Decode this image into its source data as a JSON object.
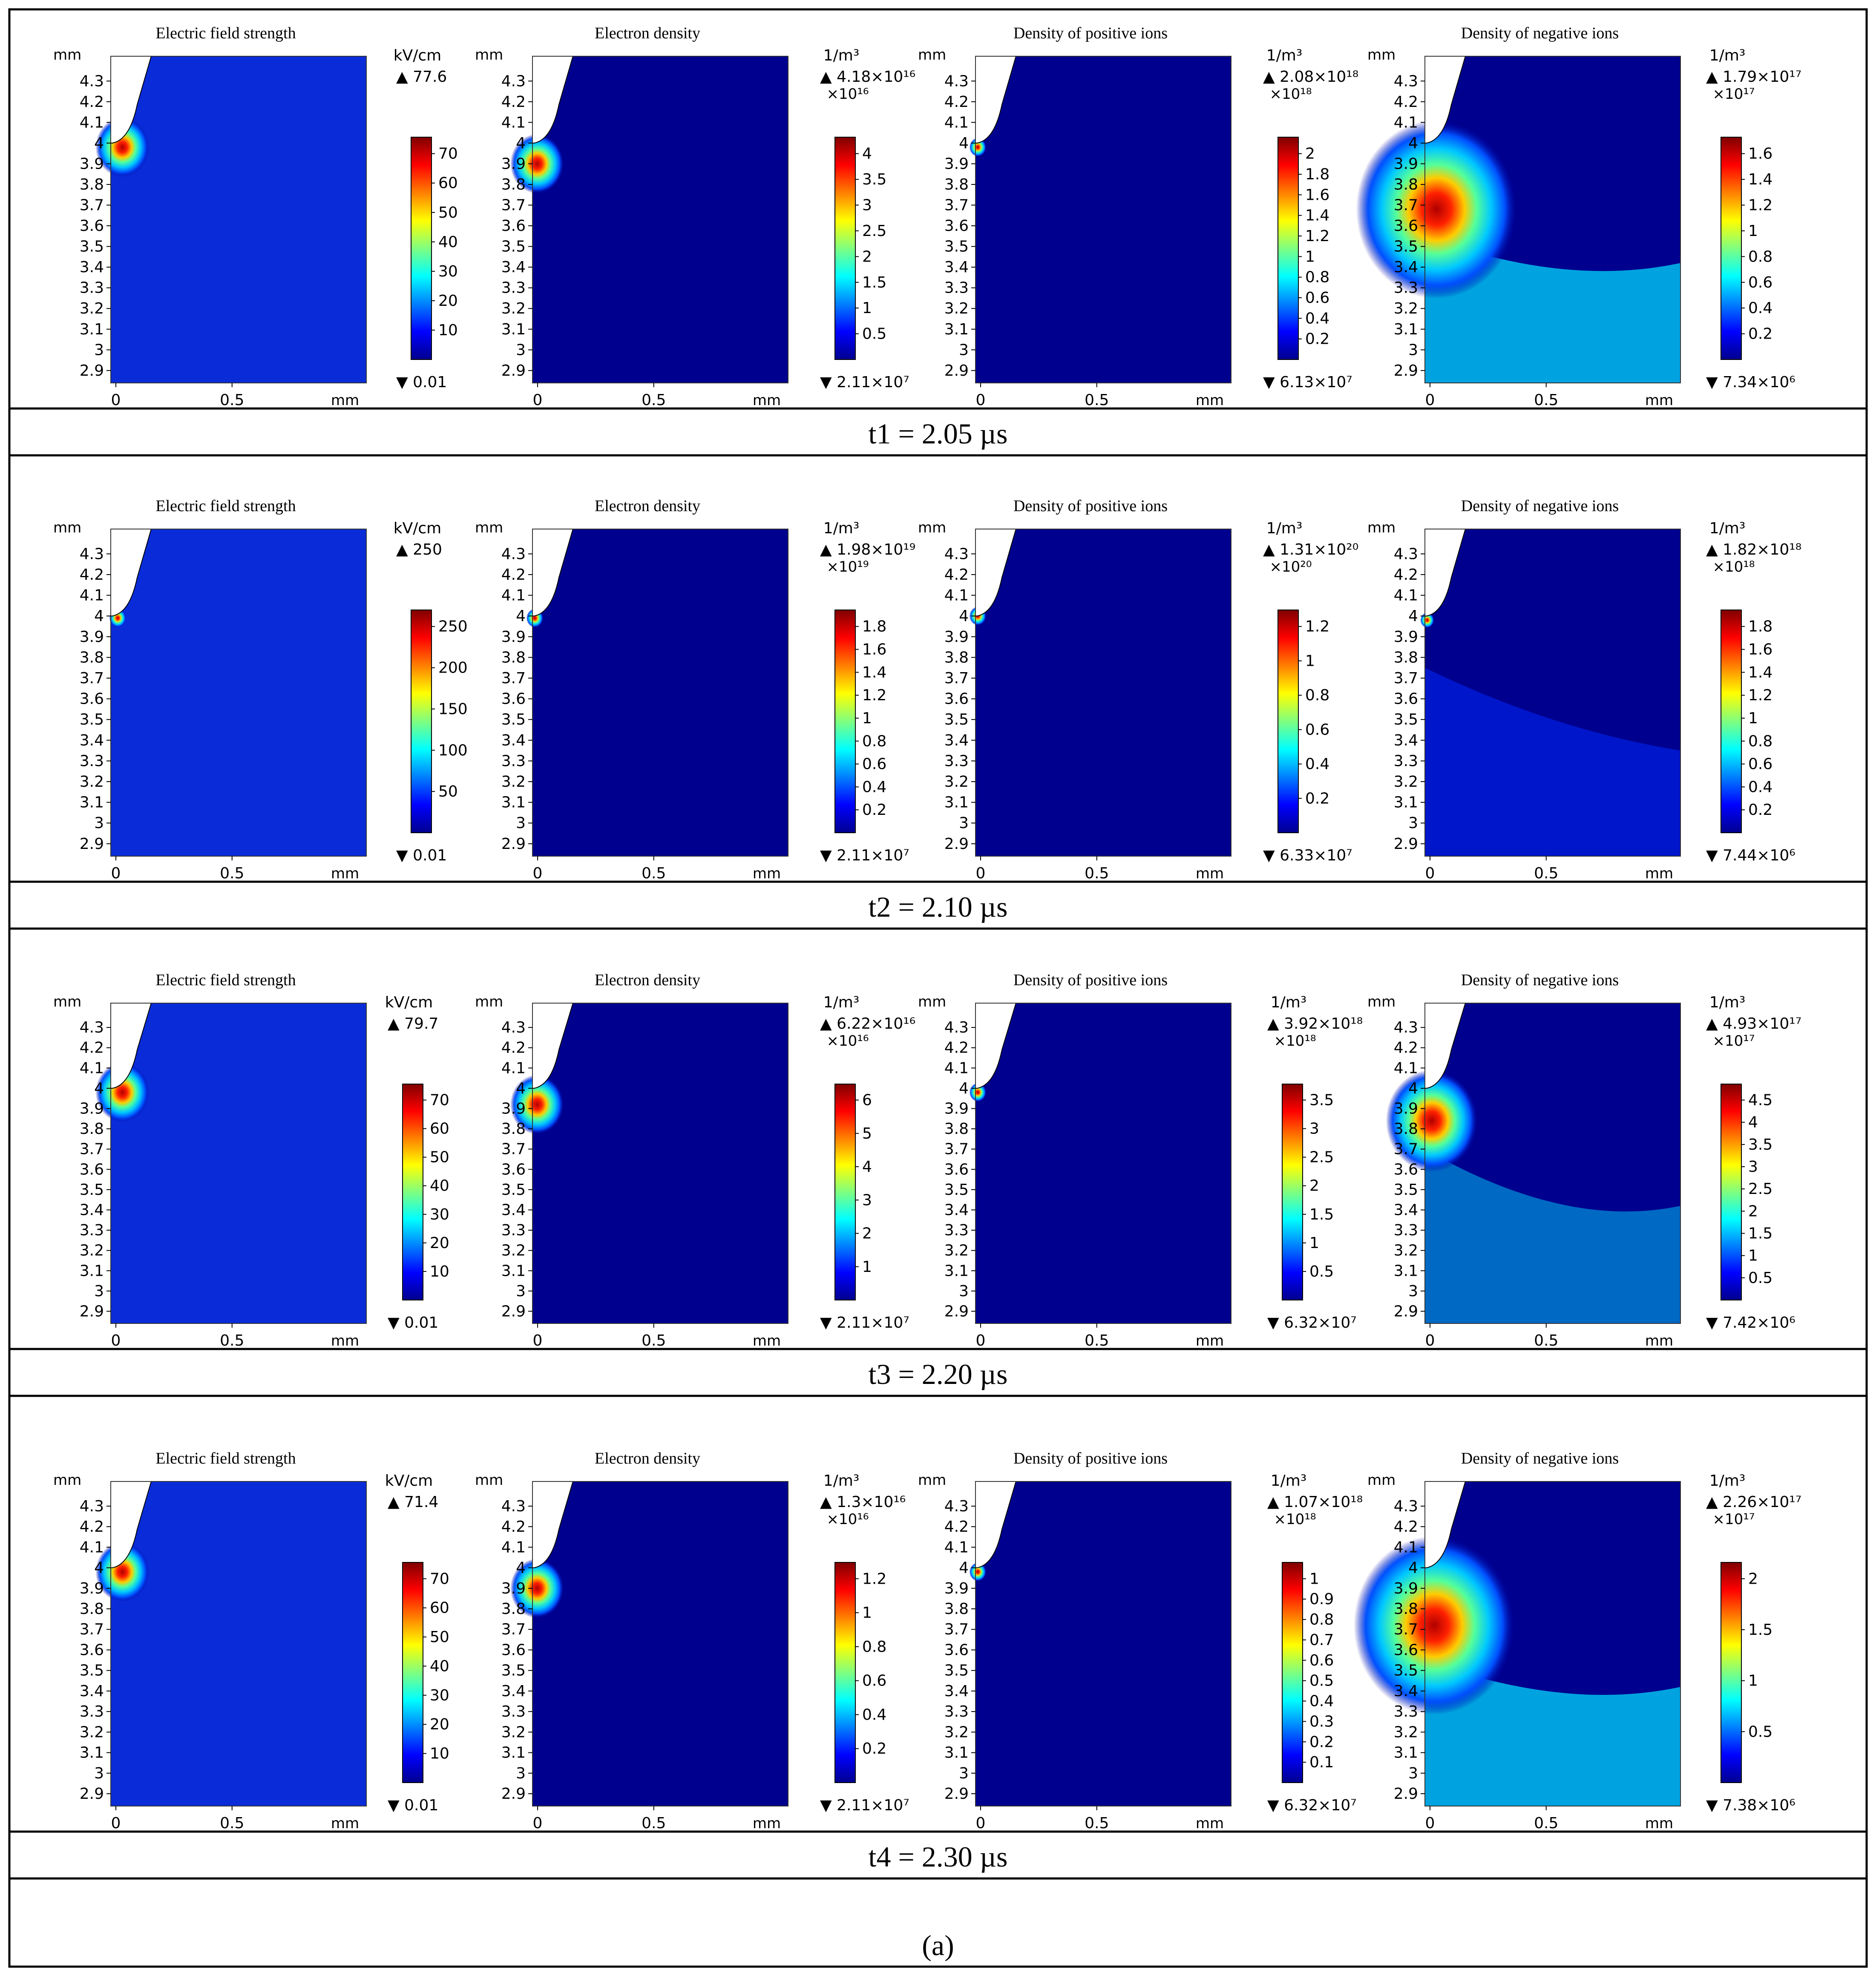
{
  "panel_label": "(a)",
  "common_axes": {
    "y_unit": "mm",
    "x_unit": "mm",
    "y_ticks": [
      "4.3",
      "4.2",
      "4.1",
      "4",
      "3.9",
      "3.8",
      "3.7",
      "3.6",
      "3.5",
      "3.4",
      "3.3",
      "3.2",
      "3.1",
      "3",
      "2.9"
    ],
    "x_ticks": [
      "0",
      "0.5"
    ]
  },
  "chart_data": [
    {
      "type": "heatmap",
      "time_caption": "t1 = 2.05 µs",
      "plots": [
        {
          "title": "Electric field strength",
          "unit": "kV/cm",
          "max_label": "77.6",
          "min_label": "0.01",
          "scale_label": "",
          "ticks": [
            "70",
            "60",
            "50",
            "40",
            "30",
            "20",
            "10"
          ],
          "hotspot": {
            "x": 0.05,
            "y": 3.98
          },
          "spread": "small"
        },
        {
          "title": "Electron density",
          "unit": "1/m³",
          "max_label": "4.18×10¹⁶",
          "min_label": "2.11×10⁷",
          "scale_label": "×10¹⁶",
          "ticks": [
            "4",
            "3.5",
            "3",
            "2.5",
            "2",
            "1.5",
            "1",
            "0.5"
          ],
          "hotspot": {
            "x": 0.02,
            "y": 3.9
          },
          "spread": "small"
        },
        {
          "title": "Density of positive ions",
          "unit": "1/m³",
          "max_label": "2.08×10¹⁸",
          "min_label": "6.13×10⁷",
          "scale_label": "×10¹⁸",
          "ticks": [
            "2",
            "1.8",
            "1.6",
            "1.4",
            "1.2",
            "1",
            "0.8",
            "0.6",
            "0.4",
            "0.2"
          ],
          "hotspot": {
            "x": 0.01,
            "y": 3.98
          },
          "spread": "tiny"
        },
        {
          "title": "Density of negative ions",
          "unit": "1/m³",
          "max_label": "1.79×10¹⁷",
          "min_label": "7.34×10⁶",
          "scale_label": "×10¹⁷",
          "ticks": [
            "1.6",
            "1.4",
            "1.2",
            "1",
            "0.8",
            "0.6",
            "0.4",
            "0.2"
          ],
          "hotspot": {
            "x": 0.05,
            "y": 3.68
          },
          "spread": "large"
        }
      ]
    },
    {
      "type": "heatmap",
      "time_caption": "t2 = 2.10 µs",
      "plots": [
        {
          "title": "Electric field strength",
          "unit": "kV/cm",
          "max_label": "250",
          "min_label": "0.01",
          "scale_label": "",
          "ticks": [
            "250",
            "200",
            "150",
            "100",
            "50"
          ],
          "hotspot": {
            "x": 0.03,
            "y": 3.99
          },
          "spread": "tiny"
        },
        {
          "title": "Electron density",
          "unit": "1/m³",
          "max_label": "1.98×10¹⁹",
          "min_label": "2.11×10⁷",
          "scale_label": "×10¹⁹",
          "ticks": [
            "1.8",
            "1.6",
            "1.4",
            "1.2",
            "1",
            "0.8",
            "0.6",
            "0.4",
            "0.2"
          ],
          "hotspot": {
            "x": 0.01,
            "y": 3.99
          },
          "spread": "tiny"
        },
        {
          "title": "Density of positive ions",
          "unit": "1/m³",
          "max_label": "1.31×10²⁰",
          "min_label": "6.33×10⁷",
          "scale_label": "×10²⁰",
          "ticks": [
            "1.2",
            "1",
            "0.8",
            "0.6",
            "0.4",
            "0.2"
          ],
          "hotspot": {
            "x": 0.01,
            "y": 4.0
          },
          "spread": "tiny"
        },
        {
          "title": "Density of negative ions",
          "unit": "1/m³",
          "max_label": "1.82×10¹⁸",
          "min_label": "7.44×10⁶",
          "scale_label": "×10¹⁸",
          "ticks": [
            "1.8",
            "1.6",
            "1.4",
            "1.2",
            "1",
            "0.8",
            "0.6",
            "0.4",
            "0.2"
          ],
          "hotspot": {
            "x": 0.01,
            "y": 3.98
          },
          "spread": "faint"
        }
      ]
    },
    {
      "type": "heatmap",
      "time_caption": "t3 = 2.20 µs",
      "plots": [
        {
          "title": "Electric field strength",
          "unit": "kV/cm",
          "max_label": "79.7",
          "min_label": "0.01",
          "scale_label": "",
          "ticks": [
            "70",
            "60",
            "50",
            "40",
            "30",
            "20",
            "10"
          ],
          "hotspot": {
            "x": 0.05,
            "y": 3.98
          },
          "spread": "small"
        },
        {
          "title": "Electron density",
          "unit": "1/m³",
          "max_label": "6.22×10¹⁶",
          "min_label": "2.11×10⁷",
          "scale_label": "×10¹⁶",
          "ticks": [
            "6",
            "5",
            "4",
            "3",
            "2",
            "1"
          ],
          "hotspot": {
            "x": 0.02,
            "y": 3.92
          },
          "spread": "small"
        },
        {
          "title": "Density of positive ions",
          "unit": "1/m³",
          "max_label": "3.92×10¹⁸",
          "min_label": "6.32×10⁷",
          "scale_label": "×10¹⁸",
          "ticks": [
            "3.5",
            "3",
            "2.5",
            "2",
            "1.5",
            "1",
            "0.5"
          ],
          "hotspot": {
            "x": 0.01,
            "y": 3.98
          },
          "spread": "tiny"
        },
        {
          "title": "Density of negative ions",
          "unit": "1/m³",
          "max_label": "4.93×10¹⁷",
          "min_label": "7.42×10⁶",
          "scale_label": "×10¹⁷",
          "ticks": [
            "4.5",
            "4",
            "3.5",
            "3",
            "2.5",
            "2",
            "1.5",
            "1",
            "0.5"
          ],
          "hotspot": {
            "x": 0.03,
            "y": 3.84
          },
          "spread": "medium"
        }
      ]
    },
    {
      "type": "heatmap",
      "time_caption": "t4 = 2.30 µs",
      "plots": [
        {
          "title": "Electric field strength",
          "unit": "kV/cm",
          "max_label": "71.4",
          "min_label": "0.01",
          "scale_label": "",
          "ticks": [
            "70",
            "60",
            "50",
            "40",
            "30",
            "20",
            "10"
          ],
          "hotspot": {
            "x": 0.05,
            "y": 3.98
          },
          "spread": "small"
        },
        {
          "title": "Electron density",
          "unit": "1/m³",
          "max_label": "1.3×10¹⁶",
          "min_label": "2.11×10⁷",
          "scale_label": "×10¹⁶",
          "ticks": [
            "1.2",
            "1",
            "0.8",
            "0.6",
            "0.4",
            "0.2"
          ],
          "hotspot": {
            "x": 0.02,
            "y": 3.9
          },
          "spread": "small"
        },
        {
          "title": "Density of positive ions",
          "unit": "1/m³",
          "max_label": "1.07×10¹⁸",
          "min_label": "6.32×10⁷",
          "scale_label": "×10¹⁸",
          "ticks": [
            "1",
            "0.9",
            "0.8",
            "0.7",
            "0.6",
            "0.5",
            "0.4",
            "0.3",
            "0.2",
            "0.1"
          ],
          "hotspot": {
            "x": 0.01,
            "y": 3.98
          },
          "spread": "tiny"
        },
        {
          "title": "Density of negative ions",
          "unit": "1/m³",
          "max_label": "2.26×10¹⁷",
          "min_label": "7.38×10⁶",
          "scale_label": "×10¹⁷",
          "ticks": [
            "2",
            "1.5",
            "1",
            "0.5"
          ],
          "hotspot": {
            "x": 0.04,
            "y": 3.72
          },
          "spread": "large"
        }
      ]
    }
  ],
  "colors": {
    "bg_field": "#00008e",
    "field_bg_efield": "#0a2cd8",
    "border": "#000000",
    "electrode": "#ffffff"
  }
}
